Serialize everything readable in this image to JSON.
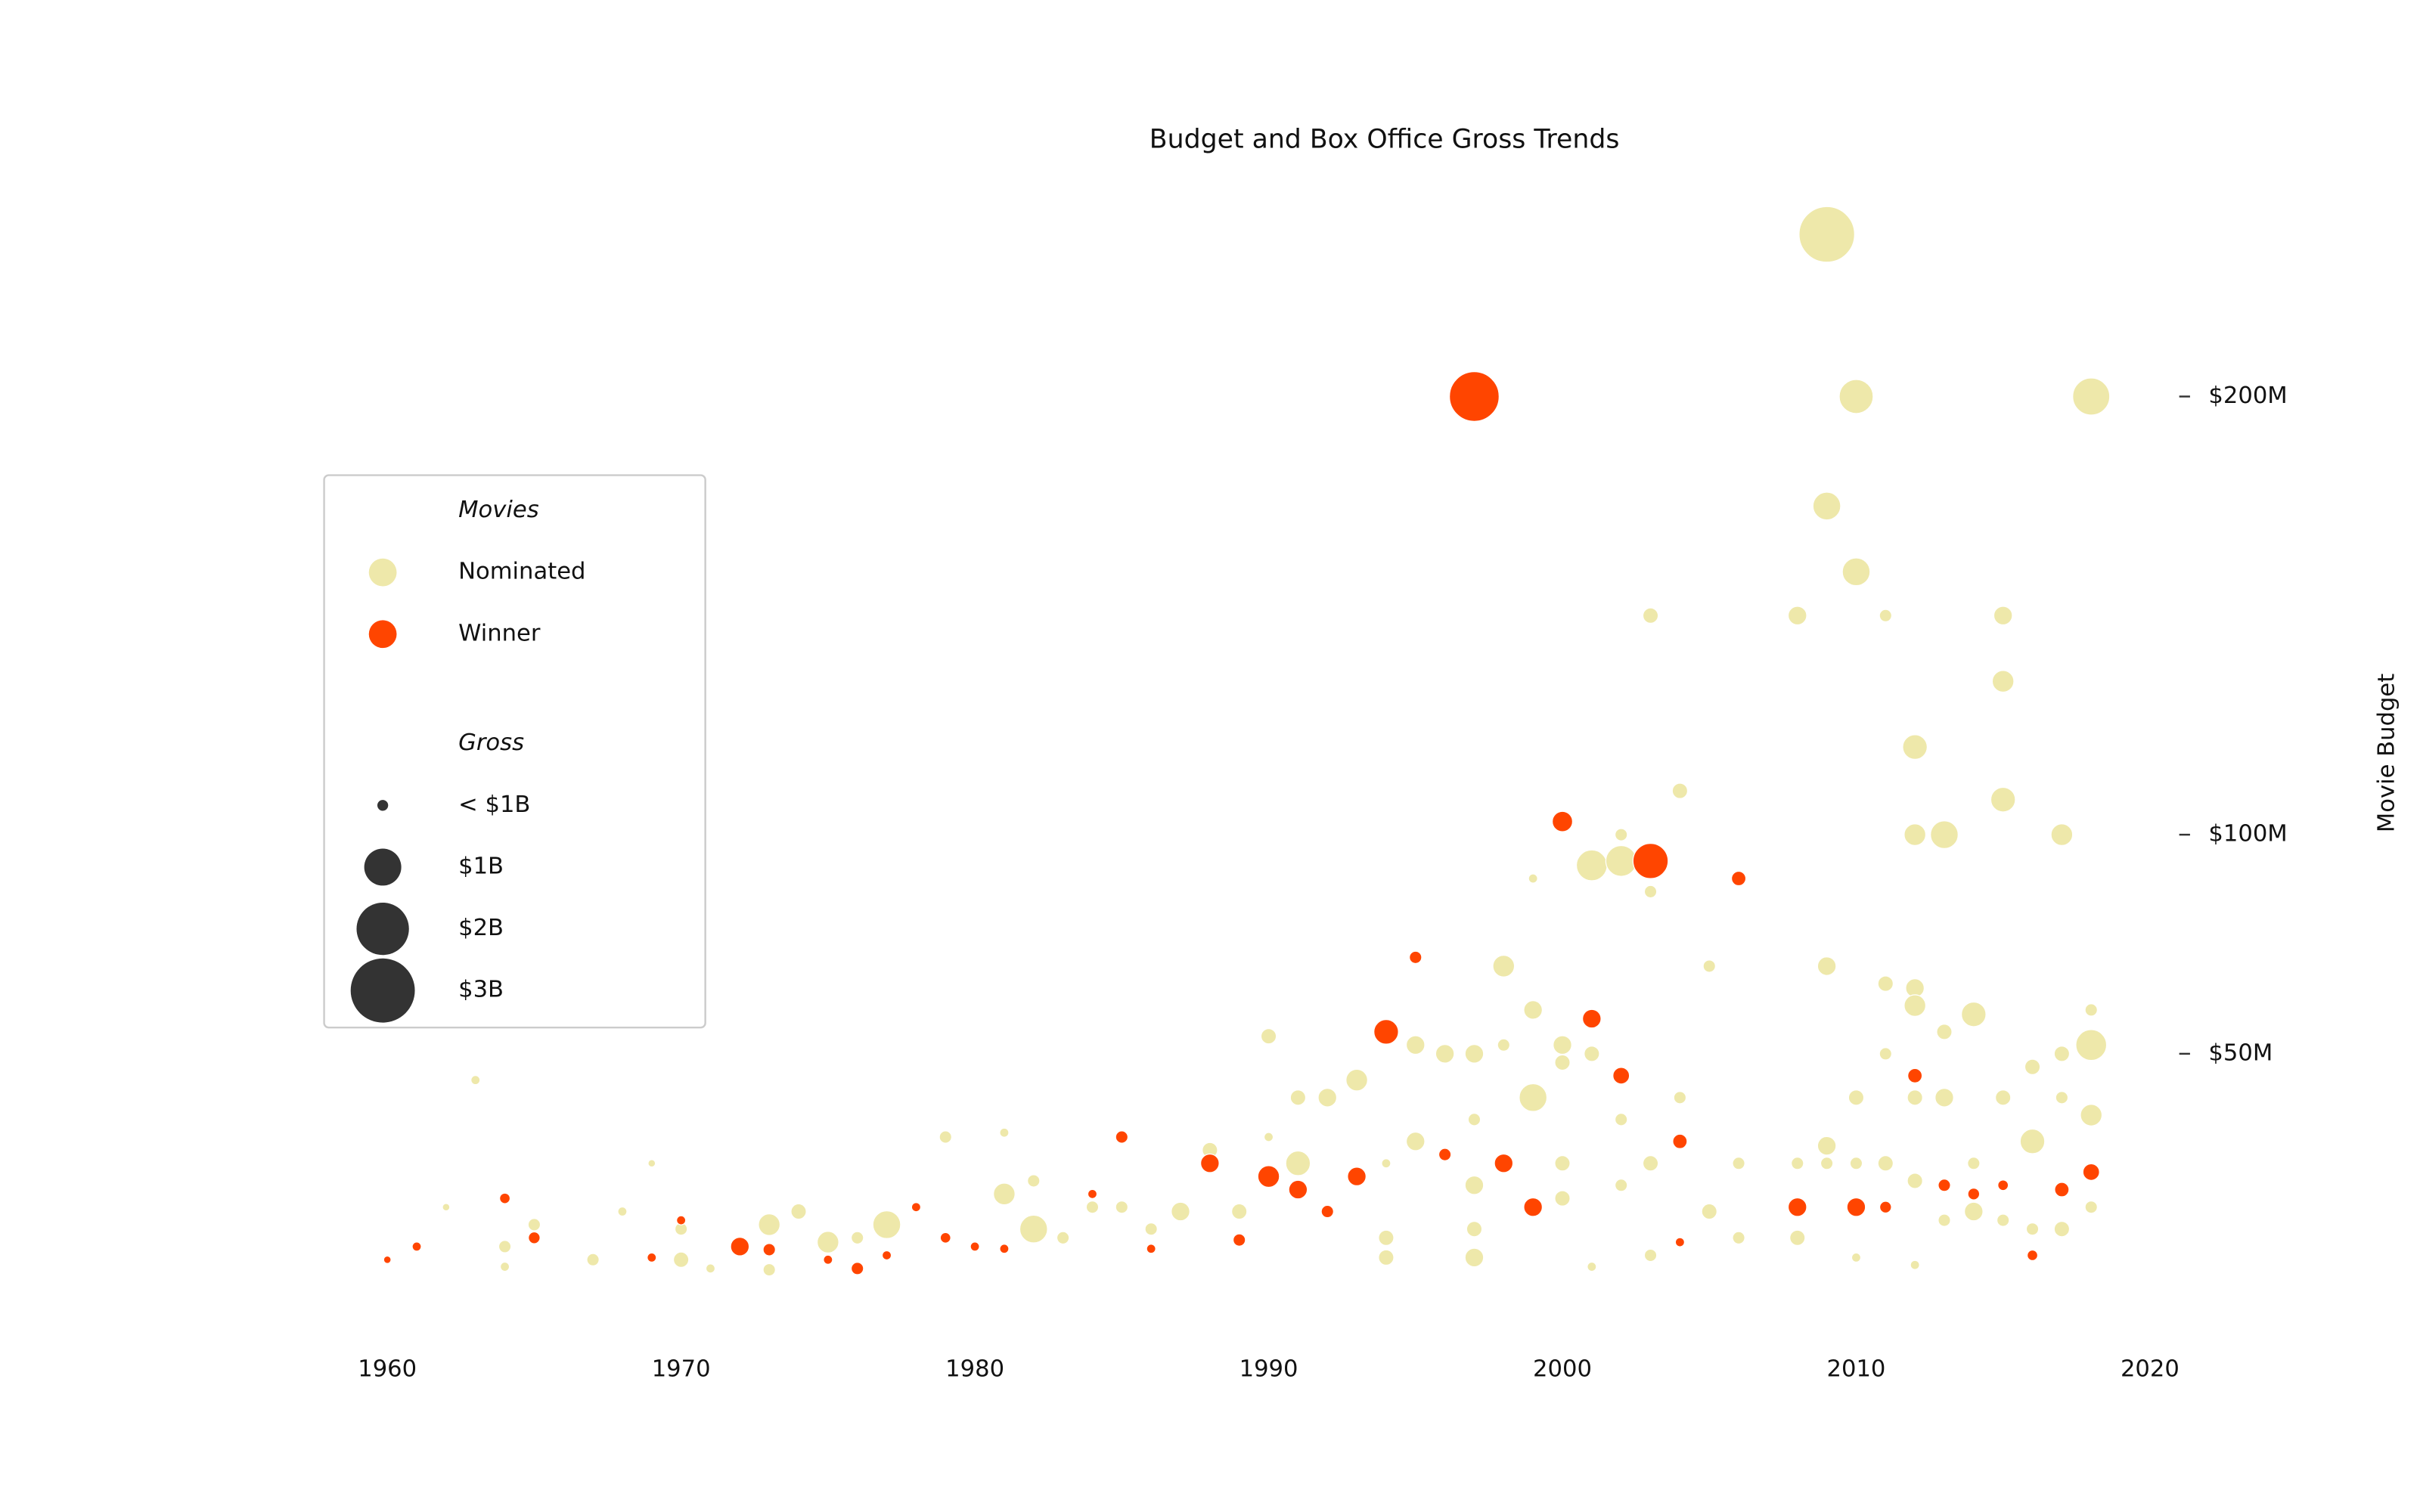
{
  "chart_data": {
    "type": "scatter",
    "title": "Budget and Box Office Gross Trends",
    "y_label": "Movie Budget",
    "xlim": [
      1955,
      2025
    ],
    "xticks": [
      1960,
      1970,
      1980,
      1990,
      2000,
      2010,
      2020
    ],
    "ylim": [
      -20,
      250
    ],
    "yticks": [
      {
        "value": 50,
        "label": "$50M"
      },
      {
        "value": 100,
        "label": "$100M"
      },
      {
        "value": 200,
        "label": "$200M"
      }
    ],
    "legend_position": "left",
    "legend_title": "Movies",
    "size_legend": {
      "title": "Gross",
      "labels": [
        "< $1B",
        "$1B",
        "$2B",
        "$3B"
      ],
      "values": [
        null,
        1,
        2,
        3
      ]
    },
    "series": [
      {
        "name": "Nominated",
        "color": "#eee8aa",
        "x": [
          2009,
          2010,
          2018,
          2009,
          2010,
          2003,
          2008,
          2011,
          2015,
          2015,
          2012,
          2004,
          2015,
          2012,
          2013,
          2017,
          2002,
          2001,
          2002,
          2003,
          1999,
          2005,
          1998,
          2009,
          2011,
          2012,
          2012,
          2014,
          2013,
          2018,
          1999,
          1990,
          2000,
          2001,
          2000,
          1995,
          1996,
          1997,
          1998,
          2011,
          2017,
          2018,
          2016,
          1993,
          1963,
          1999,
          1991,
          1992,
          2004,
          2010,
          2012,
          2013,
          2015,
          2017,
          2018,
          1997,
          2002,
          1979,
          1981,
          1995,
          2016,
          2009,
          1988,
          1991,
          1994,
          2000,
          2003,
          2006,
          2008,
          2009,
          2010,
          2011,
          2014,
          1969,
          1982,
          1981,
          1997,
          2000,
          2002,
          2012,
          1962,
          1968,
          1974,
          1977,
          1973,
          1982,
          1987,
          1989,
          2005,
          1975,
          1994,
          1997,
          2008,
          2006,
          2016,
          2017,
          2018,
          2014,
          1964,
          1965,
          1967,
          1970,
          1970,
          1971,
          1973,
          1976,
          1983,
          1984,
          1985,
          1986,
          1990,
          1994,
          1997,
          2001,
          2003,
          2010,
          2012,
          2013,
          2015,
          1964
        ],
        "values": [
          237,
          200,
          200,
          175,
          160,
          150,
          150,
          150,
          150,
          135,
          120,
          110,
          108,
          100,
          100,
          100,
          100,
          93,
          94,
          87,
          90,
          70,
          70,
          70,
          66,
          65,
          61,
          59,
          55,
          60,
          60,
          54,
          52,
          50,
          48,
          52,
          50,
          50,
          52,
          50,
          50,
          52,
          47,
          44,
          44,
          40,
          40,
          40,
          40,
          40,
          40,
          40,
          40,
          40,
          36,
          35,
          35,
          31,
          32,
          30,
          30,
          29,
          28,
          25,
          25,
          25,
          25,
          25,
          25,
          25,
          25,
          25,
          25,
          25,
          21,
          18,
          20,
          17,
          20,
          21,
          15,
          14,
          14,
          11,
          11,
          10,
          14,
          14,
          14,
          7,
          8,
          10,
          8,
          8,
          10,
          10,
          15,
          14,
          6,
          11,
          3,
          3,
          10,
          1,
          0.7,
          8,
          8,
          15,
          15,
          10,
          31,
          3.5,
          3.5,
          1.4,
          4,
          3.5,
          1.8,
          12,
          12,
          1.4
        ],
        "sizes": [
          2.25,
          0.84,
          1.0,
          0.56,
          0.56,
          0.17,
          0.25,
          0.11,
          0.25,
          0.34,
          0.44,
          0.17,
          0.44,
          0.34,
          0.56,
          0.34,
          0.11,
          0.69,
          0.69,
          0.11,
          0.06,
          0.11,
          0.34,
          0.25,
          0.17,
          0.25,
          0.34,
          0.44,
          0.17,
          0.11,
          0.25,
          0.17,
          0.25,
          0.17,
          0.17,
          0.25,
          0.25,
          0.25,
          0.11,
          0.11,
          0.17,
          0.69,
          0.17,
          0.34,
          0.06,
          0.56,
          0.17,
          0.25,
          0.11,
          0.17,
          0.17,
          0.25,
          0.17,
          0.11,
          0.34,
          0.11,
          0.11,
          0.11,
          0.06,
          0.25,
          0.44,
          0.25,
          0.17,
          0.44,
          0.06,
          0.17,
          0.17,
          0.11,
          0.11,
          0.11,
          0.11,
          0.17,
          0.11,
          0.04,
          0.11,
          0.34,
          0.25,
          0.17,
          0.11,
          0.17,
          0.04,
          0.06,
          0.17,
          0.56,
          0.34,
          0.56,
          0.25,
          0.17,
          0.17,
          0.34,
          0.17,
          0.17,
          0.17,
          0.11,
          0.11,
          0.17,
          0.11,
          0.25,
          0.11,
          0.11,
          0.11,
          0.17,
          0.11,
          0.06,
          0.11,
          0.11,
          0.11,
          0.11,
          0.11,
          0.11,
          0.06,
          0.17,
          0.25,
          0.06,
          0.11,
          0.06,
          0.06,
          0.11,
          0.11,
          0.06
        ]
      },
      {
        "name": "Winner",
        "color": "#ff4500",
        "x": [
          1960,
          1961,
          1964,
          1965,
          1970,
          1969,
          1972,
          1973,
          1975,
          1976,
          1977,
          1978,
          1979,
          1980,
          1981,
          1984,
          1985,
          1986,
          1988,
          1989,
          1990,
          1991,
          1992,
          1993,
          1994,
          1995,
          1996,
          1997,
          1998,
          1999,
          2000,
          2001,
          2002,
          2003,
          2004,
          2004,
          2006,
          2008,
          2010,
          2011,
          2012,
          2013,
          2014,
          2015,
          2016,
          2017,
          2018
        ],
        "values": [
          3,
          6,
          17,
          8,
          12,
          3.5,
          6,
          5.3,
          3,
          1,
          4,
          15,
          8,
          6,
          5.5,
          18,
          31,
          5.5,
          25,
          7.5,
          22,
          19,
          14,
          22,
          55,
          72,
          27,
          200,
          25,
          15,
          103,
          58,
          45,
          94,
          30,
          7,
          90,
          15,
          15,
          15,
          45,
          20,
          18,
          20,
          4,
          19,
          23
        ],
        "sizes": [
          0.04,
          0.06,
          0.08,
          0.1,
          0.06,
          0.06,
          0.25,
          0.11,
          0.06,
          0.11,
          0.06,
          0.06,
          0.08,
          0.06,
          0.06,
          0.06,
          0.11,
          0.06,
          0.25,
          0.11,
          0.34,
          0.25,
          0.11,
          0.25,
          0.44,
          0.11,
          0.11,
          1.8,
          0.25,
          0.25,
          0.3,
          0.25,
          0.2,
          0.9,
          0.15,
          0.06,
          0.15,
          0.25,
          0.25,
          0.1,
          0.15,
          0.11,
          0.1,
          0.08,
          0.08,
          0.15,
          0.2
        ]
      }
    ]
  }
}
